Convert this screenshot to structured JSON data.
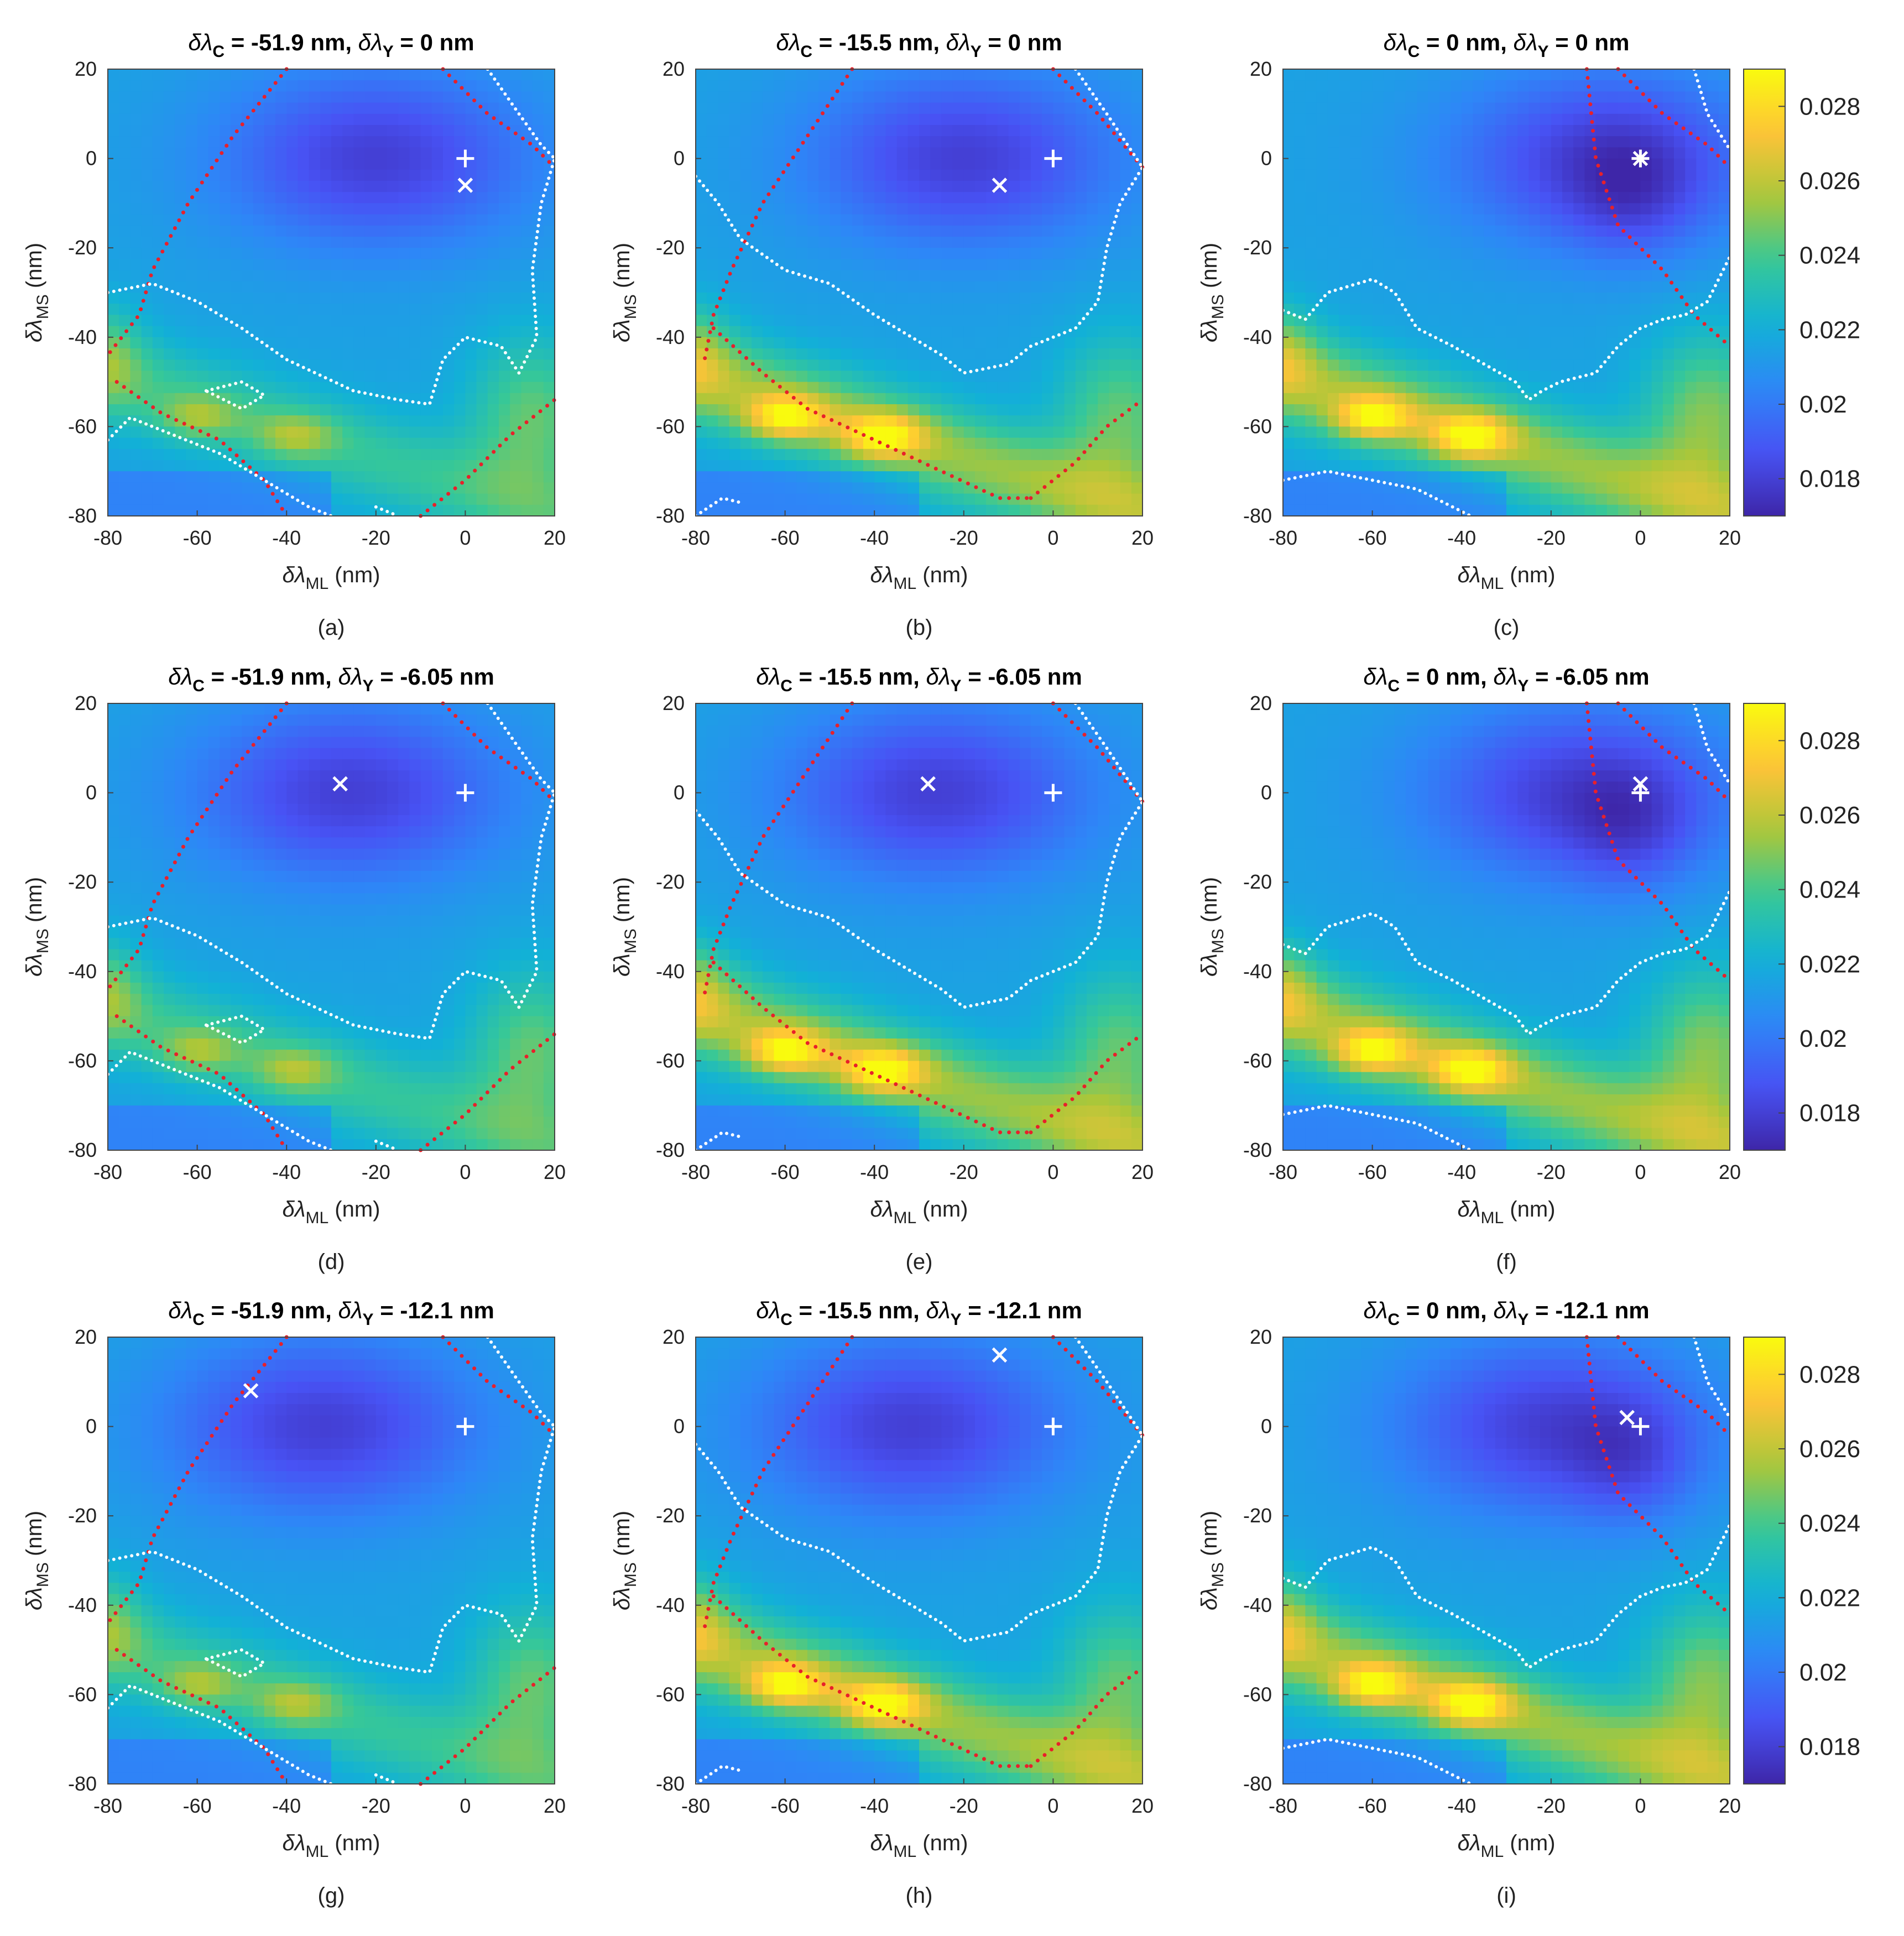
{
  "chart_data": {
    "type": "heatmap",
    "colormap": "parula",
    "color_range": [
      0.017,
      0.029
    ],
    "xlim": [
      -80,
      20
    ],
    "ylim": [
      -80,
      20
    ],
    "x_ticks": [
      -80,
      -60,
      -40,
      -20,
      0,
      20
    ],
    "y_ticks": [
      20,
      0,
      -20,
      -40,
      -60,
      -80
    ],
    "xlabel": {
      "main": "δλ",
      "sub": "ML",
      "unit": " (nm)"
    },
    "ylabel": {
      "main": "δλ",
      "sub": "MS",
      "unit": " (nm)"
    },
    "colorbar_ticks": [
      "0.028",
      "0.026",
      "0.024",
      "0.022",
      "0.02",
      "0.018"
    ],
    "colorbar_values": [
      0.028,
      0.026,
      0.024,
      0.022,
      0.02,
      0.018
    ],
    "colors": {
      "white_markers": "#ffffff",
      "red_dots": "#e8202a",
      "white_dots": "#ffffff"
    },
    "panels": [
      {
        "label": "(a)",
        "title_c": "-51.9",
        "title_y": "0",
        "plus": [
          0,
          0
        ],
        "cross": [
          0,
          -6
        ],
        "star": false,
        "col": 0
      },
      {
        "label": "(b)",
        "title_c": "-15.5",
        "title_y": "0",
        "plus": [
          0,
          0
        ],
        "cross": [
          -12,
          -6
        ],
        "star": false,
        "col": 1
      },
      {
        "label": "(c)",
        "title_c": "0",
        "title_y": "0",
        "plus": [
          0,
          0
        ],
        "cross": [
          0,
          0
        ],
        "star": true,
        "col": 2
      },
      {
        "label": "(d)",
        "title_c": "-51.9",
        "title_y": "-6.05",
        "plus": [
          0,
          0
        ],
        "cross": [
          -28,
          2
        ],
        "star": false,
        "col": 0
      },
      {
        "label": "(e)",
        "title_c": "-15.5",
        "title_y": "-6.05",
        "plus": [
          0,
          0
        ],
        "cross": [
          -28,
          2
        ],
        "star": false,
        "col": 1
      },
      {
        "label": "(f)",
        "title_c": "0",
        "title_y": "-6.05",
        "plus": [
          0,
          0
        ],
        "cross": [
          0,
          2
        ],
        "star": false,
        "col": 2
      },
      {
        "label": "(g)",
        "title_c": "-51.9",
        "title_y": "-12.1",
        "plus": [
          0,
          0
        ],
        "cross": [
          -48,
          8
        ],
        "star": false,
        "col": 0
      },
      {
        "label": "(h)",
        "title_c": "-15.5",
        "title_y": "-12.1",
        "plus": [
          0,
          0
        ],
        "cross": [
          -12,
          16
        ],
        "star": false,
        "col": 1
      },
      {
        "label": "(i)",
        "title_c": "0",
        "title_y": "-12.1",
        "plus": [
          0,
          0
        ],
        "cross": [
          -3,
          2
        ],
        "star": false,
        "col": 2
      }
    ],
    "red_boundaries": [
      [
        [
          [
            -40,
            20
          ],
          [
            -52,
            5
          ],
          [
            -62,
            -10
          ],
          [
            -70,
            -25
          ],
          [
            -73,
            -35
          ],
          [
            -80,
            -44
          ]
        ],
        [
          [
            -5,
            20
          ],
          [
            5,
            10
          ],
          [
            15,
            3
          ],
          [
            20,
            -2
          ]
        ],
        [
          [
            -78,
            -50
          ],
          [
            -68,
            -57
          ],
          [
            -55,
            -63
          ],
          [
            -45,
            -72
          ],
          [
            -40,
            -80
          ]
        ],
        [
          [
            -10,
            -80
          ],
          [
            0,
            -72
          ],
          [
            10,
            -62
          ],
          [
            20,
            -54
          ]
        ]
      ],
      [
        [
          [
            -45,
            20
          ],
          [
            -55,
            5
          ],
          [
            -65,
            -10
          ],
          [
            -72,
            -25
          ],
          [
            -76,
            -35
          ],
          [
            -78,
            -45
          ]
        ],
        [
          [
            0,
            20
          ],
          [
            10,
            10
          ],
          [
            20,
            -2
          ]
        ],
        [
          [
            -76,
            -38
          ],
          [
            -65,
            -48
          ],
          [
            -55,
            -56
          ],
          [
            -40,
            -63
          ],
          [
            -25,
            -70
          ],
          [
            -12,
            -76
          ],
          [
            -5,
            -76
          ]
        ],
        [
          [
            -5,
            -76
          ],
          [
            5,
            -68
          ],
          [
            12,
            -60
          ],
          [
            20,
            -54
          ]
        ]
      ],
      [
        [
          [
            -12,
            20
          ],
          [
            -10,
            0
          ],
          [
            -5,
            -15
          ],
          [
            5,
            -25
          ],
          [
            12,
            -35
          ],
          [
            20,
            -42
          ]
        ],
        [
          [
            -5,
            20
          ],
          [
            5,
            10
          ],
          [
            15,
            3
          ],
          [
            20,
            -2
          ]
        ]
      ]
    ],
    "white_contours": [
      [
        [
          [
            -80,
            -30
          ],
          [
            -70,
            -28
          ],
          [
            -60,
            -32
          ],
          [
            -50,
            -38
          ],
          [
            -40,
            -45
          ],
          [
            -25,
            -52
          ],
          [
            -15,
            -54
          ],
          [
            -8,
            -55
          ],
          [
            -5,
            -45
          ],
          [
            0,
            -40
          ],
          [
            8,
            -42
          ],
          [
            12,
            -48
          ],
          [
            16,
            -40
          ],
          [
            15,
            -25
          ],
          [
            17,
            -10
          ],
          [
            20,
            0
          ]
        ],
        [
          [
            5,
            20
          ],
          [
            12,
            10
          ],
          [
            17,
            3
          ],
          [
            20,
            0
          ]
        ],
        [
          [
            -80,
            -63
          ],
          [
            -75,
            -58
          ],
          [
            -65,
            -62
          ],
          [
            -55,
            -66
          ],
          [
            -45,
            -72
          ],
          [
            -35,
            -78
          ],
          [
            -30,
            -80
          ]
        ],
        [
          [
            -20,
            -78
          ],
          [
            -15,
            -80
          ]
        ],
        [
          [
            -58,
            -52
          ],
          [
            -50,
            -50
          ],
          [
            -45,
            -53
          ],
          [
            -50,
            -56
          ],
          [
            -58,
            -52
          ]
        ]
      ],
      [
        [
          [
            -80,
            -4
          ],
          [
            -75,
            -10
          ],
          [
            -70,
            -18
          ],
          [
            -60,
            -25
          ],
          [
            -50,
            -28
          ],
          [
            -40,
            -35
          ],
          [
            -25,
            -44
          ],
          [
            -20,
            -48
          ],
          [
            -10,
            -46
          ],
          [
            -5,
            -42
          ],
          [
            0,
            -40
          ],
          [
            5,
            -38
          ],
          [
            10,
            -32
          ],
          [
            12,
            -20
          ],
          [
            15,
            -10
          ],
          [
            20,
            -2
          ]
        ],
        [
          [
            5,
            20
          ],
          [
            12,
            10
          ],
          [
            20,
            -2
          ]
        ],
        [
          [
            -80,
            -80
          ],
          [
            -74,
            -76
          ],
          [
            -70,
            -77
          ]
        ]
      ],
      [
        [
          [
            -80,
            -34
          ],
          [
            -75,
            -36
          ],
          [
            -70,
            -30
          ],
          [
            -60,
            -27
          ],
          [
            -55,
            -30
          ],
          [
            -50,
            -38
          ],
          [
            -42,
            -42
          ],
          [
            -35,
            -46
          ],
          [
            -28,
            -50
          ],
          [
            -25,
            -54
          ],
          [
            -22,
            -52
          ],
          [
            -18,
            -50
          ],
          [
            -10,
            -48
          ],
          [
            -5,
            -42
          ],
          [
            0,
            -38
          ],
          [
            5,
            -36
          ],
          [
            10,
            -35
          ],
          [
            15,
            -32
          ],
          [
            20,
            -22
          ]
        ],
        [
          [
            12,
            20
          ],
          [
            15,
            10
          ],
          [
            20,
            2
          ]
        ],
        [
          [
            -80,
            -72
          ],
          [
            -70,
            -70
          ],
          [
            -60,
            -72
          ],
          [
            -50,
            -74
          ],
          [
            -42,
            -78
          ],
          [
            -38,
            -80
          ]
        ]
      ]
    ],
    "field_model": {
      "basin": [
        [
          -20,
          0,
          35,
          20,
          0.0035
        ],
        [
          -2,
          -8,
          14,
          14,
          0.0015
        ]
      ],
      "ridge": [
        [
          -60,
          -58,
          0.0045
        ],
        [
          -38,
          -62,
          0.0045
        ]
      ],
      "description": "low valley upper area, high diagonal band lower-left"
    }
  }
}
